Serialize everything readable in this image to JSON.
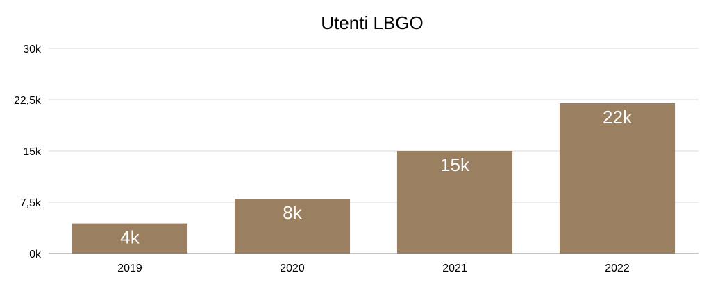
{
  "chart_data": {
    "type": "bar",
    "title": "Utenti LBGO",
    "categories": [
      "2019",
      "2020",
      "2021",
      "2022"
    ],
    "values": [
      4400,
      8000,
      15000,
      22000
    ],
    "data_labels": [
      "4k",
      "8k",
      "15k",
      "22k"
    ],
    "ylim": [
      0,
      30000
    ],
    "y_ticks": [
      0,
      7500,
      15000,
      22500,
      30000
    ],
    "y_tick_labels": [
      "0k",
      "7,5k",
      "15k",
      "22,5k",
      "30k"
    ],
    "grid": true,
    "legend": "none",
    "bar_color": "#9a7f61",
    "grid_color": "#d9d9d9"
  }
}
